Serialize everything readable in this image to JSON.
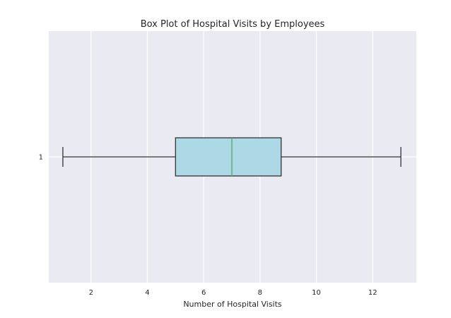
{
  "chart_data": {
    "type": "boxplot",
    "orientation": "horizontal",
    "title": "Box Plot of Hospital Visits by Employees",
    "xlabel": "Number of Hospital Visits",
    "ylabel": "",
    "xlim": [
      0.5,
      13.55
    ],
    "x_ticks": [
      2,
      4,
      6,
      8,
      10,
      12
    ],
    "y_ticks": [
      "1"
    ],
    "grid": true,
    "colors": {
      "background": "#eaeaf2",
      "grid": "#ffffff",
      "box_fill": "#add8e6",
      "box_edge": "#333333",
      "median": "#55a868",
      "whisker": "#333333"
    },
    "boxes": [
      {
        "label": "1",
        "whislo": 1,
        "q1": 5,
        "med": 7,
        "q3": 8.75,
        "whishi": 13
      }
    ]
  }
}
